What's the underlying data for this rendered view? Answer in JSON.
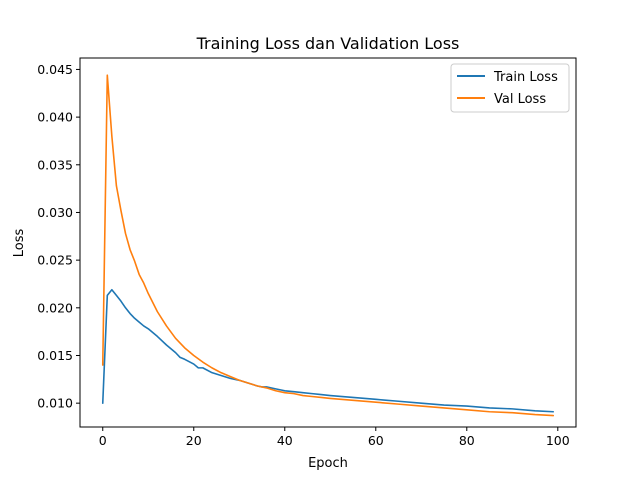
{
  "chart_data": {
    "type": "line",
    "title": "Training Loss dan Validation Loss",
    "xlabel": "Epoch",
    "ylabel": "Loss",
    "xlim": [
      -5,
      104
    ],
    "ylim": [
      0.0075,
      0.0462
    ],
    "xticks": [
      0,
      20,
      40,
      60,
      80,
      100
    ],
    "yticks": [
      0.01,
      0.015,
      0.02,
      0.025,
      0.03,
      0.035,
      0.04,
      0.045
    ],
    "ytick_labels": [
      "0.010",
      "0.015",
      "0.020",
      "0.025",
      "0.030",
      "0.035",
      "0.040",
      "0.045"
    ],
    "grid": false,
    "legend_position": "top-right",
    "series": [
      {
        "name": "Train Loss",
        "color": "#1f77b4",
        "x": [
          0,
          1,
          2,
          3,
          4,
          5,
          6,
          7,
          8,
          9,
          10,
          12,
          14,
          16,
          17,
          18,
          20,
          21,
          22,
          24,
          26,
          28,
          30,
          32,
          34,
          35,
          36,
          38,
          40,
          42,
          44,
          46,
          48,
          50,
          55,
          60,
          65,
          70,
          75,
          80,
          85,
          90,
          95,
          99
        ],
        "y": [
          0.01,
          0.0213,
          0.0219,
          0.0213,
          0.0207,
          0.02,
          0.0194,
          0.0189,
          0.0185,
          0.0181,
          0.0178,
          0.017,
          0.0161,
          0.0153,
          0.0148,
          0.0146,
          0.0141,
          0.0137,
          0.0137,
          0.0132,
          0.0129,
          0.0126,
          0.0124,
          0.0121,
          0.0118,
          0.0117,
          0.0117,
          0.0115,
          0.0113,
          0.0112,
          0.0111,
          0.011,
          0.0109,
          0.0108,
          0.0106,
          0.0104,
          0.0102,
          0.01,
          0.0098,
          0.0097,
          0.0095,
          0.0094,
          0.0092,
          0.0091
        ]
      },
      {
        "name": "Val Loss",
        "color": "#ff7f0e",
        "x": [
          0,
          1,
          2,
          3,
          4,
          5,
          6,
          7,
          8,
          9,
          10,
          12,
          14,
          16,
          18,
          20,
          22,
          24,
          26,
          28,
          30,
          32,
          34,
          36,
          38,
          40,
          42,
          44,
          46,
          48,
          50,
          55,
          60,
          65,
          70,
          75,
          80,
          85,
          90,
          95,
          99
        ],
        "y": [
          0.014,
          0.0444,
          0.038,
          0.0328,
          0.0302,
          0.0278,
          0.0261,
          0.0249,
          0.0235,
          0.0226,
          0.0215,
          0.0196,
          0.0181,
          0.0168,
          0.0158,
          0.015,
          0.0143,
          0.0137,
          0.0132,
          0.0128,
          0.0124,
          0.0121,
          0.0118,
          0.0116,
          0.0113,
          0.0111,
          0.011,
          0.0108,
          0.0107,
          0.0106,
          0.0105,
          0.0103,
          0.0101,
          0.0099,
          0.0097,
          0.0095,
          0.0093,
          0.0091,
          0.009,
          0.0088,
          0.0087
        ]
      }
    ]
  }
}
